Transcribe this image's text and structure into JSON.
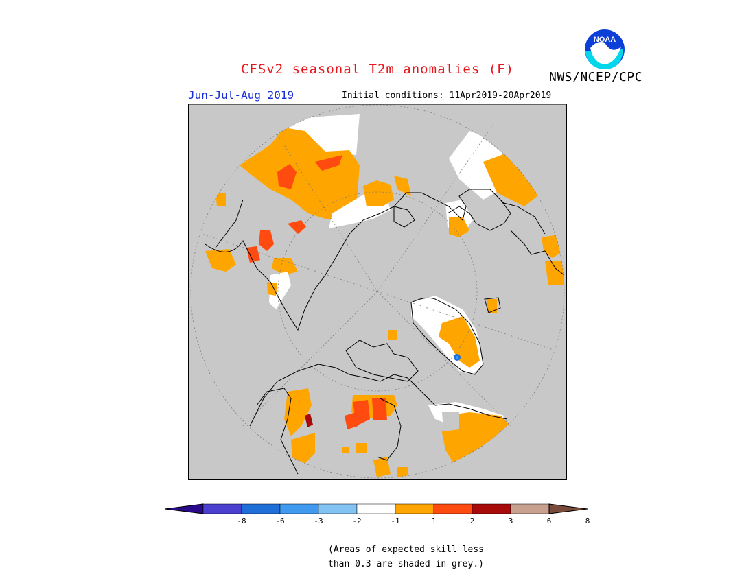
{
  "header": {
    "title": "CFSv2 seasonal T2m anomalies (F)",
    "agency": "NWS/NCEP/CPC",
    "season": "Jun-Jul-Aug 2019",
    "initial_conditions": "Initial conditions: 11Apr2019-20Apr2019",
    "logo_text": "NOAA"
  },
  "map": {
    "projection": "north polar stereographic",
    "background_color": "#c8c8c8"
  },
  "colorbar": {
    "tick_labels": [
      "-8",
      "-6",
      "-3",
      "-2",
      "-1",
      "1",
      "2",
      "3",
      "6",
      "8"
    ],
    "colors": [
      "#2a0a8a",
      "#4a3fcf",
      "#1f6fd9",
      "#3f9af0",
      "#82c3f4",
      "#ffffff",
      "#ffa500",
      "#ff4a10",
      "#a80a0a",
      "#c8a090",
      "#7a4a3a"
    ]
  },
  "note": {
    "line1": "(Areas of expected skill less",
    "line2": "than 0.3 are shaded in grey.)"
  }
}
